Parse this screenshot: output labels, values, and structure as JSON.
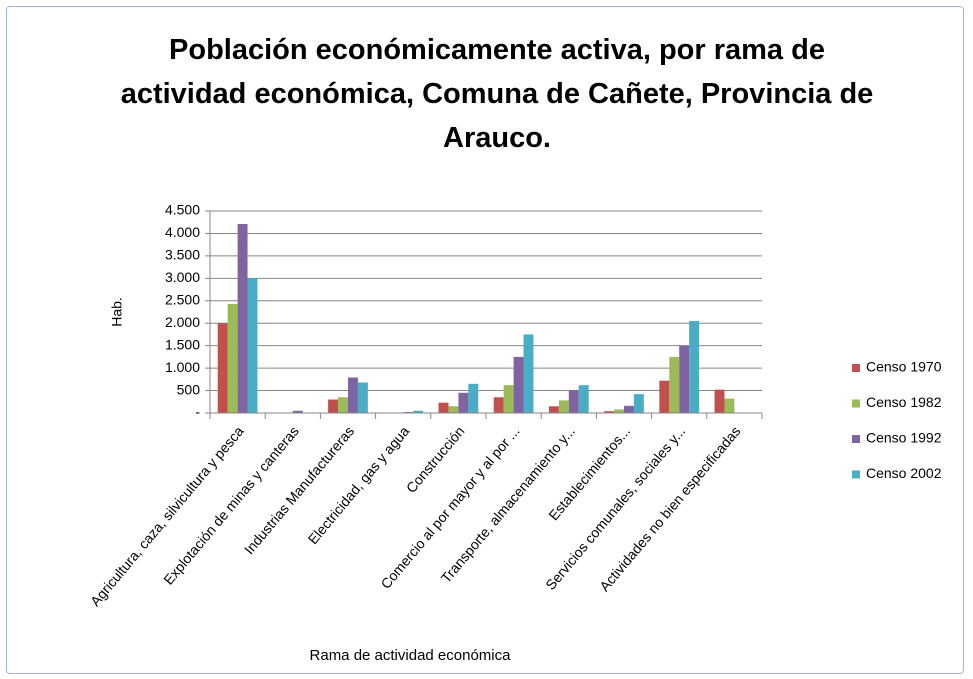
{
  "chart_data": {
    "type": "bar",
    "title": "Población económicamente activa, por rama de actividad económica, Comuna de Cañete, Provincia de Arauco.",
    "x_label": "Rama de actividad económica",
    "y_label": "Hab.",
    "categories": [
      "Agricultura, caza, silvicultura y pesca",
      "Explotación de minas y canteras",
      "Industrias Manufactureras",
      "Electricidad, gas y agua",
      "Construcción",
      "Comercio al por mayor y al por ...",
      "Transporte, almacenamiento y...",
      "Establecimientos...",
      "Servicios comunales, sociales y...",
      "Actividades no bien especificadas"
    ],
    "series": [
      {
        "name": "Censo 1970",
        "color": "#c0504d",
        "values": [
          2000,
          10,
          300,
          10,
          230,
          350,
          150,
          40,
          720,
          520
        ]
      },
      {
        "name": "Censo 1982",
        "color": "#9bbb59",
        "values": [
          2430,
          5,
          350,
          10,
          150,
          620,
          280,
          80,
          1250,
          320
        ]
      },
      {
        "name": "Censo 1992",
        "color": "#8064a2",
        "values": [
          4210,
          50,
          790,
          20,
          450,
          1250,
          510,
          160,
          1500,
          null
        ]
      },
      {
        "name": "Censo 2002",
        "color": "#4bacc6",
        "values": [
          3000,
          10,
          680,
          50,
          650,
          1750,
          620,
          420,
          2050,
          null
        ]
      }
    ],
    "ylim": [
      0,
      4500
    ],
    "yticks": [
      {
        "value": 0,
        "label": "-"
      },
      500,
      {
        "value": 1000,
        "label": "1.000"
      },
      {
        "value": 1500,
        "label": "1.500"
      },
      {
        "value": 2000,
        "label": "2.000"
      },
      {
        "value": 2500,
        "label": "2.500"
      },
      {
        "value": 3000,
        "label": "3.000"
      },
      {
        "value": 3500,
        "label": "3.500"
      },
      {
        "value": 4000,
        "label": "4.000"
      },
      {
        "value": 4500,
        "label": "4.500"
      }
    ],
    "grid": true
  }
}
